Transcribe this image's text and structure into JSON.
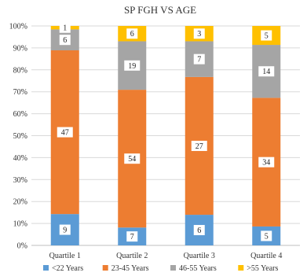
{
  "chart_data": {
    "type": "bar",
    "stacked": true,
    "normalized": true,
    "title": "SP FGH VS AGE",
    "xlabel": "",
    "ylabel": "",
    "ylim": [
      0,
      100
    ],
    "y_ticks": [
      "0%",
      "10%",
      "20%",
      "30%",
      "40%",
      "50%",
      "60%",
      "70%",
      "80%",
      "90%",
      "100%"
    ],
    "grid": true,
    "legend_position": "bottom",
    "categories": [
      "Quartile 1",
      "Quartile 2",
      "Quartile 3",
      "Quartile 4"
    ],
    "series": [
      {
        "name": "<22 Years",
        "color": "#5b9bd5",
        "values": [
          9,
          7,
          6,
          5
        ]
      },
      {
        "name": "23-45 Years",
        "color": "#ed7d31",
        "values": [
          47,
          54,
          27,
          34
        ]
      },
      {
        "name": "46-55 Years",
        "color": "#a5a5a5",
        "values": [
          6,
          19,
          7,
          14
        ]
      },
      {
        "name": ">55 Years",
        "color": "#ffc000",
        "values": [
          1,
          6,
          3,
          5
        ]
      }
    ]
  }
}
